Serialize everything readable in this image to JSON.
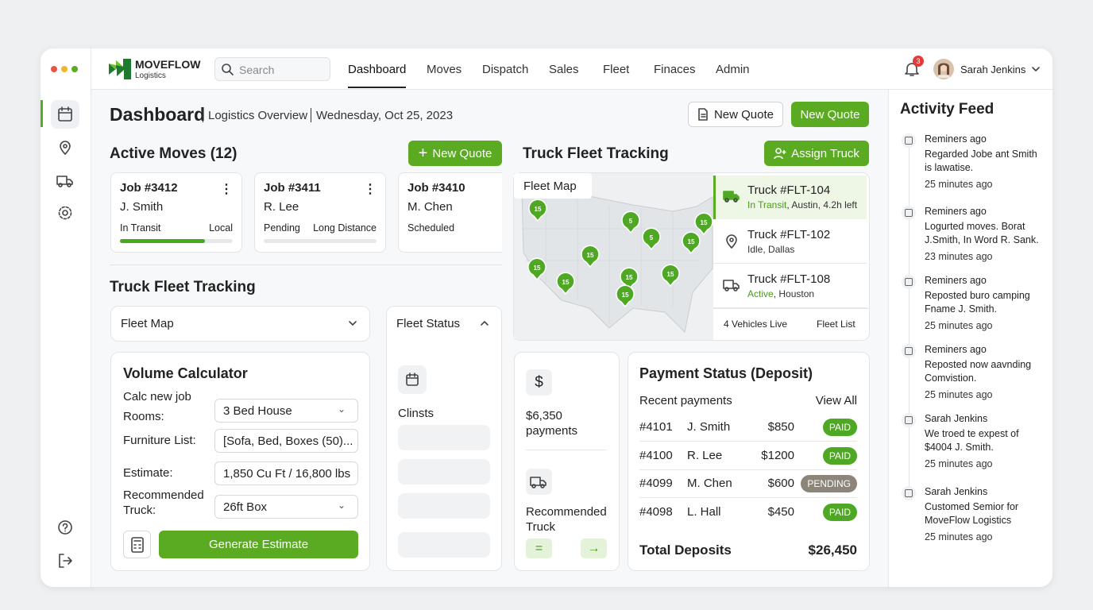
{
  "brand": {
    "name": "MOVEFLOW",
    "sub": "Logistics"
  },
  "search": "Search",
  "nav": [
    "Dashboard",
    "Moves",
    "Dispatch",
    "Sales",
    "Fleet",
    "Finaces",
    "Admin"
  ],
  "notifications": "3",
  "user": "Sarah Jenkins",
  "header": {
    "title": "Dashboard",
    "subtitle": "Logistics Overview",
    "date": "Wednesday, Oct 25, 2023",
    "buttons": [
      "New Quote",
      "New Quote"
    ]
  },
  "active_moves": {
    "title": "Active Moves (12)",
    "button": "New Quote",
    "cards": [
      {
        "job": "Job #3412",
        "client": "J. Smith",
        "status": "In Transit",
        "type": "Local",
        "progress": 75
      },
      {
        "job": "Job #3411",
        "client": "R. Lee",
        "status": "Pending",
        "type": "Long Distance",
        "progress": 0
      },
      {
        "job": "Job #3410",
        "client": "M. Chen",
        "status": "Scheduled"
      }
    ]
  },
  "fleet_left": {
    "title": "Truck Fleet Tracking",
    "dropdown": "Fleet Map",
    "status_title": "Fleet Status",
    "status_label": "Clinsts"
  },
  "volume": {
    "title": "Volume Calculator",
    "intro": "Calc new job",
    "fields": [
      {
        "label": "Rooms:",
        "value": "3 Bed House"
      },
      {
        "label": "Furniture List:",
        "value": "[Sofa, Bed, Boxes (50)..."
      },
      {
        "label": "Estimate:",
        "value": "1,850 Cu Ft / 16,800 lbs"
      },
      {
        "label": "Recommended Truck:",
        "value": "26ft Box"
      }
    ],
    "button": "Generate Estimate"
  },
  "fleet": {
    "title": "Truck Fleet Tracking",
    "button": "Assign Truck",
    "map_label": "Fleet Map",
    "pins": [
      "15",
      "5",
      "15",
      "5",
      "15",
      "15",
      "15",
      "15",
      "15",
      "15",
      "15"
    ],
    "trucks": [
      {
        "name": "Truck #FLT-104",
        "status": "In Transit",
        "location": ", Austin, 4.2h left"
      },
      {
        "name": "Truck #FLT-102",
        "status": "Idle",
        "location": ", Dallas"
      },
      {
        "name": "Truck #FLT-108",
        "status": "Active",
        "location": ", Houston"
      }
    ],
    "live": "4 Vehicles Live",
    "list": "Fleet List"
  },
  "summary": {
    "amount": "$6,350",
    "amount_label": "payments",
    "truck_label": "Recommended Truck"
  },
  "payments": {
    "title": "Payment Status (Deposit)",
    "subtitle": "Recent payments",
    "link": "View All",
    "rows": [
      [
        "#4101",
        "J. Smith",
        "$850",
        "PAID"
      ],
      [
        "#4100",
        "R. Lee",
        "$1200",
        "PAID"
      ],
      [
        "#4099",
        "M. Chen",
        "$600",
        "PENDING"
      ],
      [
        "#4098",
        "L. Hall",
        "$450",
        "PAID"
      ]
    ],
    "total_label": "Total Deposits",
    "total": "$26,450"
  },
  "feed": {
    "title": "Activity Feed",
    "items": [
      {
        "who": "Reminers ago",
        "text": "Regarded Jobe ant Smith is lawatise.",
        "time": "25 minutes ago"
      },
      {
        "who": "Reminers ago",
        "text": "Logurted moves. Borat J.Smith, In Word R. Sank.",
        "time": "23 minutes ago"
      },
      {
        "who": "Reminers ago",
        "text": "Reposted buro camping Fname J. Smith.",
        "time": "25 minutes ago"
      },
      {
        "who": "Reminers ago",
        "text": "Reposted now aavnding Comvistion.",
        "time": "25 minutes ago"
      },
      {
        "who": "Sarah Jenkins",
        "text": "We troed te expest of $4004 J. Smith.",
        "time": "25 minutes ago"
      },
      {
        "who": "Sarah Jenkins",
        "text": "Customed Semior for MoveFlow Logistics",
        "time": "25 minutes ago"
      }
    ]
  }
}
